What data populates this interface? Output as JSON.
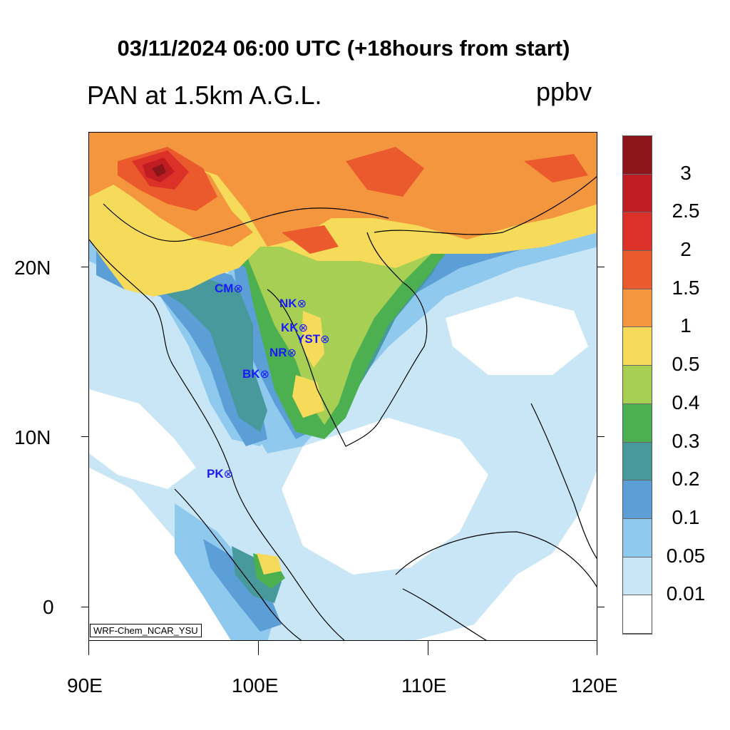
{
  "title": "03/11/2024 06:00 UTC (+18hours from start)",
  "subtitle": "PAN at 1.5km A.G.L.",
  "units": "ppbv",
  "credit": "WRF-Chem_NCAR_YSU",
  "axes": {
    "x_labels": [
      "90E",
      "100E",
      "110E",
      "120E"
    ],
    "y_labels": [
      "20N",
      "10N",
      "0"
    ]
  },
  "stations": [
    {
      "code": "CM",
      "marker": "⊗"
    },
    {
      "code": "NK",
      "marker": "⊗"
    },
    {
      "code": "KK",
      "marker": "⊗"
    },
    {
      "code": "YST",
      "marker": "⊗"
    },
    {
      "code": "NR",
      "marker": "⊗"
    },
    {
      "code": "BK",
      "marker": "⊗"
    },
    {
      "code": "PK",
      "marker": "⊗"
    }
  ],
  "colorbar": {
    "labels": [
      "3",
      "2.5",
      "2",
      "1.5",
      "1",
      "0.5",
      "0.4",
      "0.3",
      "0.2",
      "0.1",
      "0.05",
      "0.01"
    ],
    "colors": [
      "#8b1518",
      "#c01d22",
      "#dc3128",
      "#ea5a2c",
      "#f4963e",
      "#f6da5a",
      "#a6cf54",
      "#4caf50",
      "#48999b",
      "#5b9fd6",
      "#8fcaee",
      "#c9e6f7",
      "#ffffff"
    ]
  }
}
